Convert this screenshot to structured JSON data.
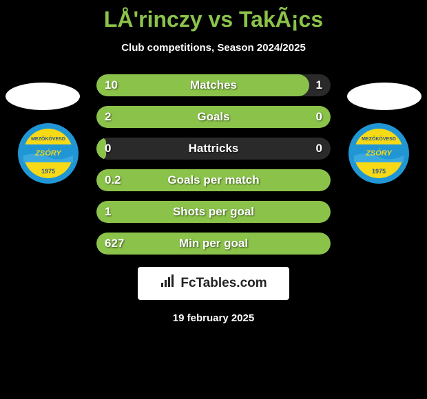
{
  "title": "LÅ'rinczy vs TakÃ¡cs",
  "subtitle": "Club competitions, Season 2024/2025",
  "colors": {
    "background": "#000000",
    "title_color": "#8bc34a",
    "text_white": "#ffffff",
    "bar_fill_green": "#8bc34a",
    "bar_rest_dark": "#2a2a2a",
    "club_blue": "#2196d4",
    "club_yellow": "#f7d916"
  },
  "stats": [
    {
      "label": "Matches",
      "left_value": "10",
      "right_value": "1",
      "fill_percent": 91
    },
    {
      "label": "Goals",
      "left_value": "2",
      "right_value": "0",
      "fill_percent": 100
    },
    {
      "label": "Hattricks",
      "left_value": "0",
      "right_value": "0",
      "fill_percent": 4
    },
    {
      "label": "Goals per match",
      "left_value": "0.2",
      "right_value": "",
      "fill_percent": 100
    },
    {
      "label": "Shots per goal",
      "left_value": "1",
      "right_value": "",
      "fill_percent": 100
    },
    {
      "label": "Min per goal",
      "left_value": "627",
      "right_value": "",
      "fill_percent": 100
    }
  ],
  "footer_brand": "FcTables.com",
  "date": "19 february 2025",
  "club": {
    "top_text": "MEZŐKÖVESD",
    "mid_text": "ZSÓRY",
    "year": "1975"
  }
}
